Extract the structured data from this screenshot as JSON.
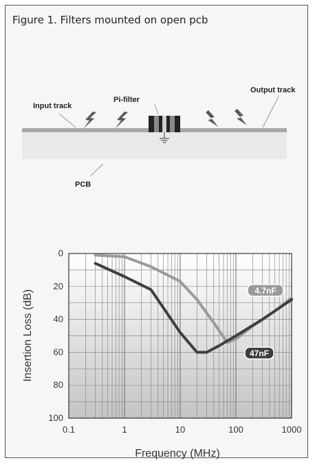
{
  "figure": {
    "title": "Figure 1.  Filters mounted on open pcb"
  },
  "diagram": {
    "labels": {
      "input_track": "Input track",
      "pi_filter": "Pi-filter",
      "output_track": "Output track",
      "pcb": "PCB"
    },
    "colors": {
      "track": "#a8a8a8",
      "pcb_fill": "#e9e9e9",
      "lightning": "#5a5a5a",
      "filter_body": "#222222",
      "filter_band": "#8a8a8a"
    }
  },
  "chart_data": {
    "type": "line",
    "xscale": "log",
    "xlim": [
      0.1,
      1000
    ],
    "ylim": [
      0,
      100
    ],
    "y_inverted": true,
    "xlabel": "Frequency (MHz)",
    "ylabel": "Insertion Loss (dB)",
    "x_ticks": [
      "0.1",
      "1",
      "10",
      "100",
      "1000"
    ],
    "y_ticks": [
      "0",
      "20",
      "40",
      "60",
      "80",
      "100"
    ],
    "grid": true,
    "series": [
      {
        "name": "4.7nF",
        "color": "#9a9a9a",
        "points": [
          [
            0.3,
            1
          ],
          [
            1,
            2
          ],
          [
            3,
            8
          ],
          [
            10,
            17
          ],
          [
            20,
            28
          ],
          [
            40,
            42
          ],
          [
            70,
            54
          ],
          [
            100,
            52
          ],
          [
            200,
            44
          ],
          [
            500,
            35
          ],
          [
            1000,
            27
          ]
        ]
      },
      {
        "name": "47nF",
        "color": "#3e3e3e",
        "points": [
          [
            0.3,
            6
          ],
          [
            1,
            14
          ],
          [
            3,
            22
          ],
          [
            5,
            33
          ],
          [
            10,
            48
          ],
          [
            20,
            60
          ],
          [
            30,
            60
          ],
          [
            50,
            56
          ],
          [
            100,
            50
          ],
          [
            300,
            40
          ],
          [
            1000,
            28
          ]
        ]
      }
    ]
  }
}
